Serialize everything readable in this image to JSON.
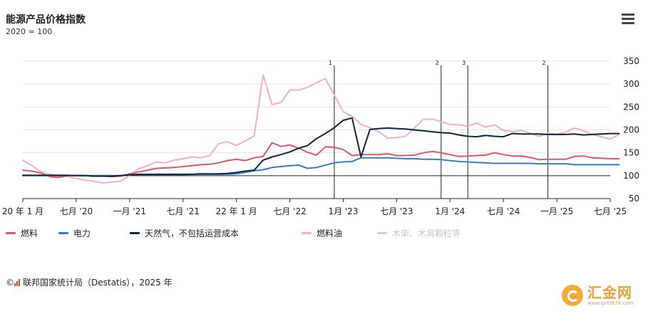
{
  "header": {
    "title": "能源产品价格指数",
    "subtitle": "2020 = 100"
  },
  "source": {
    "text": "联邦国家统计局（Destatis），2025 年",
    "prefix": "©"
  },
  "watermark": {
    "name": "汇金网",
    "url": "www.gold678.com"
  },
  "colors": {
    "fuel": "#e0566a",
    "electricity": "#3b7cc4",
    "gas": "#0b2545",
    "heating_oil": "#f6b0bb",
    "wood": "#d0d0d0",
    "axis": "#222222",
    "grid": "#e6e6e6"
  },
  "chart_data": {
    "type": "line",
    "title": "能源产品价格指数",
    "subtitle": "2020 = 100",
    "x_start": "2020-01",
    "x_end": "2025-07",
    "ylim": [
      50,
      350
    ],
    "yticks": [
      50,
      100,
      150,
      200,
      250,
      300,
      350
    ],
    "y_axis_position": "right",
    "baseline": 100,
    "grid": true,
    "legend_position": "bottom",
    "xtick_labels": [
      {
        "x": "2020-01",
        "label": "20 年 1 月"
      },
      {
        "x": "2020-07",
        "label": "七月 '20"
      },
      {
        "x": "2021-01",
        "label": "一月 '21"
      },
      {
        "x": "2021-07",
        "label": "七月 '21"
      },
      {
        "x": "2022-01",
        "label": "22 年 1 月"
      },
      {
        "x": "2022-07",
        "label": "七月 '22"
      },
      {
        "x": "2023-01",
        "label": "1月 '23"
      },
      {
        "x": "2023-07",
        "label": "七月 '23"
      },
      {
        "x": "2024-01",
        "label": "1月 '24"
      },
      {
        "x": "2024-07",
        "label": "七月 '24"
      },
      {
        "x": "2025-01",
        "label": "一月 '25"
      },
      {
        "x": "2025-07",
        "label": "七月 '25"
      }
    ],
    "annotations": [
      {
        "x": "2022-12",
        "label": "1"
      },
      {
        "x": "2023-12",
        "label": "2"
      },
      {
        "x": "2024-03",
        "label": "3"
      },
      {
        "x": "2024-12",
        "label": "2"
      }
    ],
    "series": [
      {
        "name": "燃料",
        "color": "#e0566a",
        "values": [
          112,
          110,
          106,
          98,
          96,
          100,
          101,
          100,
          99,
          99,
          98,
          99,
          104,
          108,
          112,
          116,
          117,
          118,
          120,
          122,
          124,
          125,
          128,
          133,
          136,
          133,
          139,
          142,
          172,
          164,
          167,
          160,
          151,
          145,
          163,
          162,
          157,
          144,
          146,
          146,
          146,
          148,
          144,
          144,
          145,
          150,
          153,
          150,
          146,
          142,
          143,
          144,
          145,
          150,
          146,
          143,
          143,
          140,
          135,
          136,
          136,
          136,
          142,
          143,
          139,
          138,
          137,
          137
        ]
      },
      {
        "name": "电力",
        "color": "#3b7cc4",
        "values": [
          100,
          100,
          100,
          100,
          100,
          100,
          100,
          100,
          100,
          100,
          100,
          100,
          102,
          102,
          102,
          102,
          102,
          102,
          102,
          103,
          103,
          103,
          103,
          103,
          104,
          107,
          111,
          113,
          118,
          120,
          122,
          123,
          116,
          118,
          123,
          128,
          130,
          131,
          139,
          139,
          139,
          139,
          138,
          137,
          137,
          136,
          136,
          135,
          133,
          131,
          130,
          129,
          128,
          127,
          127,
          127,
          127,
          127,
          126,
          126,
          126,
          126,
          124,
          124,
          124,
          124,
          124,
          124
        ]
      },
      {
        "name": "天然气，不包括运营成本",
        "color": "#0b2545",
        "values": [
          101,
          101,
          101,
          101,
          101,
          101,
          100,
          100,
          99,
          99,
          99,
          100,
          102,
          103,
          103,
          103,
          103,
          103,
          103,
          103,
          104,
          104,
          104,
          105,
          107,
          110,
          112,
          134,
          141,
          146,
          152,
          160,
          166,
          181,
          192,
          205,
          221,
          226,
          141,
          201,
          203,
          204,
          203,
          202,
          200,
          198,
          196,
          194,
          193,
          189,
          186,
          185,
          188,
          186,
          185,
          192,
          191,
          191,
          191,
          190,
          190,
          190,
          191,
          189,
          190,
          191,
          192,
          192
        ]
      },
      {
        "name": "燃料油",
        "color": "#f6b0bb",
        "values": [
          134,
          122,
          109,
          103,
          100,
          98,
          94,
          90,
          88,
          84,
          86,
          88,
          100,
          115,
          122,
          130,
          128,
          134,
          137,
          141,
          139,
          144,
          170,
          174,
          166,
          176,
          187,
          320,
          255,
          260,
          287,
          287,
          293,
          303,
          312,
          276,
          240,
          230,
          212,
          205,
          196,
          182,
          183,
          186,
          204,
          223,
          224,
          218,
          212,
          211,
          208,
          215,
          206,
          211,
          199,
          196,
          199,
          193,
          186,
          193,
          190,
          195,
          204,
          198,
          190,
          185,
          180,
          190
        ]
      },
      {
        "name": "木柴、木屑颗粒等",
        "color": "#d0d0d0",
        "hidden": true,
        "values": []
      }
    ]
  }
}
